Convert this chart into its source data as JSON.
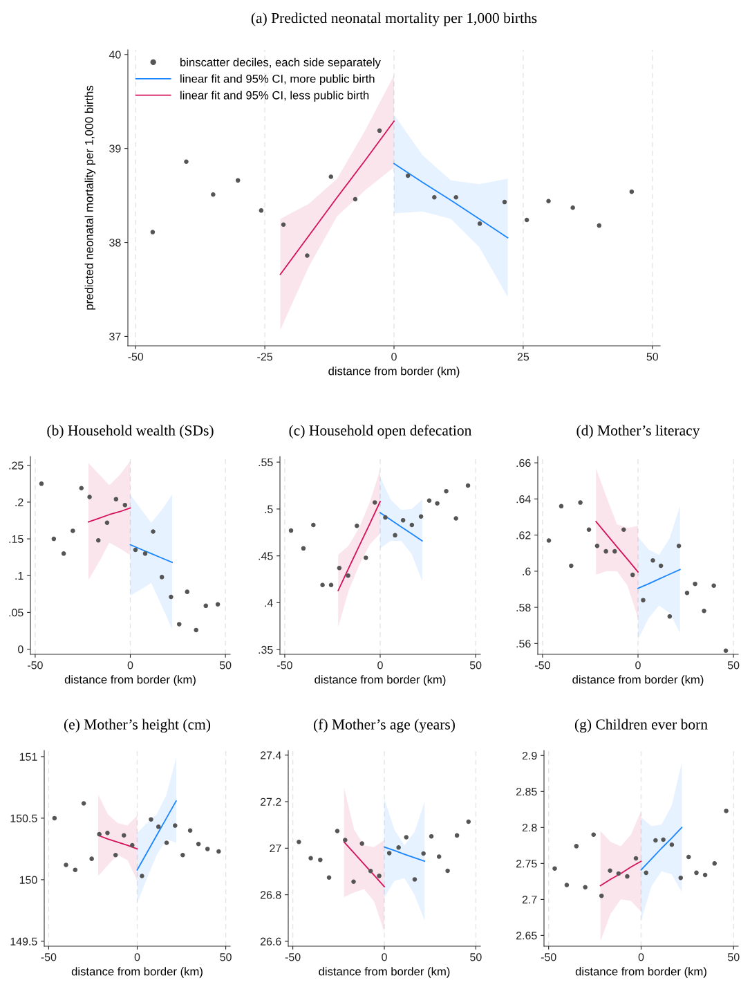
{
  "chart_data": [
    {
      "type": "scatter",
      "title": "(a) Predicted neonatal mortality per 1,000 births",
      "xlabel": "distance from border (km)",
      "ylabel": "predicted neonatal mortality per 1,000 births",
      "xlim": [
        -51.5,
        51.5
      ],
      "xticks": [
        -50,
        -25,
        0,
        25,
        50
      ],
      "ylim": [
        36.9,
        40.05
      ],
      "yticks": [
        37,
        38,
        39,
        40
      ],
      "grid": "x",
      "legend": "top left",
      "series": [
        {
          "type": "scatter",
          "name": "binscatter deciles, each side separately",
          "color": "#555555",
          "x": [
            -46.7,
            -40.2,
            -35.0,
            -30.2,
            -25.7,
            -21.4,
            -16.8,
            -12.2,
            -7.5,
            -2.8,
            2.7,
            7.8,
            12.0,
            16.6,
            21.4,
            25.7,
            29.9,
            34.6,
            39.7,
            46.0
          ],
          "values": [
            38.11,
            38.86,
            38.51,
            38.66,
            38.34,
            38.19,
            37.86,
            38.7,
            38.46,
            39.19,
            38.71,
            38.48,
            38.48,
            38.2,
            38.43,
            38.24,
            38.44,
            38.37,
            38.18,
            38.54
          ]
        },
        {
          "type": "line",
          "name": "linear fit and 95% CI, more public birth",
          "color": "#1a85ff",
          "x": [
            0,
            5.5,
            11,
            16.5,
            22
          ],
          "values": [
            38.84,
            38.64,
            38.45,
            38.25,
            38.05
          ],
          "lower": [
            38.31,
            38.33,
            38.25,
            37.95,
            37.42
          ],
          "upper": [
            39.36,
            38.93,
            38.66,
            38.62,
            38.68
          ]
        },
        {
          "type": "line",
          "name": "linear fit and 95% CI, less public birth",
          "color": "#d41159",
          "x": [
            -22,
            -16.5,
            -11,
            -5.5,
            0
          ],
          "values": [
            37.66,
            38.07,
            38.48,
            38.88,
            39.29
          ],
          "lower": [
            37.07,
            37.74,
            38.28,
            38.56,
            38.8
          ],
          "upper": [
            38.25,
            38.41,
            38.68,
            39.2,
            39.78
          ]
        }
      ]
    },
    {
      "type": "scatter",
      "title": "(b) Household wealth (SDs)",
      "xlabel": "distance from border (km)",
      "xlim": [
        -52.5,
        52.5
      ],
      "xticks": [
        -50,
        0,
        50
      ],
      "ylim": [
        -0.007,
        0.262
      ],
      "yticks": [
        0,
        {
          "value": 0.05,
          "label": ".05"
        },
        {
          "value": 0.1,
          "label": ".1"
        },
        {
          "value": 0.15,
          "label": ".15"
        },
        {
          "value": 0.2,
          "label": ".2"
        },
        {
          "value": 0.25,
          "label": ".25"
        }
      ],
      "grid": "x",
      "series": [
        {
          "type": "scatter",
          "color": "#555555",
          "x": [
            -46.7,
            -40.2,
            -35.0,
            -30.2,
            -25.7,
            -21.4,
            -16.8,
            -12.2,
            -7.5,
            -2.8,
            2.7,
            7.8,
            12.0,
            16.6,
            21.4,
            25.7,
            29.9,
            34.6,
            39.7,
            46.0
          ],
          "values": [
            0.225,
            0.15,
            0.13,
            0.161,
            0.219,
            0.207,
            0.148,
            0.172,
            0.204,
            0.196,
            0.135,
            0.13,
            0.16,
            0.098,
            0.071,
            0.034,
            0.078,
            0.026,
            0.059,
            0.061
          ]
        },
        {
          "type": "line",
          "color": "#1a85ff",
          "x": [
            0,
            5.5,
            11,
            16.5,
            22
          ],
          "values": [
            0.142,
            0.136,
            0.13,
            0.124,
            0.118
          ],
          "lower": [
            0.073,
            0.081,
            0.09,
            0.059,
            0.027
          ],
          "upper": [
            0.21,
            0.191,
            0.172,
            0.189,
            0.21
          ]
        },
        {
          "type": "line",
          "color": "#d41159",
          "x": [
            -22,
            -16.5,
            -11,
            -5.5,
            0
          ],
          "values": [
            0.173,
            0.178,
            0.183,
            0.187,
            0.192
          ],
          "lower": [
            0.094,
            0.118,
            0.145,
            0.137,
            0.128
          ],
          "upper": [
            0.253,
            0.238,
            0.223,
            0.237,
            0.256
          ]
        }
      ]
    },
    {
      "type": "scatter",
      "title": "(c) Household open defecation",
      "xlabel": "distance from border (km)",
      "xlim": [
        -52.5,
        52.5
      ],
      "xticks": [
        -50,
        0,
        50
      ],
      "ylim": [
        0.345,
        0.556
      ],
      "yticks": [
        {
          "value": 0.35,
          "label": ".35"
        },
        {
          "value": 0.4,
          "label": ".4"
        },
        {
          "value": 0.45,
          "label": ".45"
        },
        {
          "value": 0.5,
          "label": ".5"
        },
        {
          "value": 0.55,
          "label": ".55"
        }
      ],
      "grid": "x",
      "series": [
        {
          "type": "scatter",
          "color": "#555555",
          "x": [
            -46.7,
            -40.2,
            -35.0,
            -30.2,
            -25.7,
            -21.4,
            -16.8,
            -12.2,
            -7.5,
            -2.8,
            2.7,
            7.8,
            12.0,
            16.6,
            21.4,
            25.7,
            29.9,
            34.6,
            39.7,
            46.0
          ],
          "values": [
            0.477,
            0.458,
            0.483,
            0.419,
            0.419,
            0.437,
            0.429,
            0.482,
            0.448,
            0.507,
            0.491,
            0.472,
            0.488,
            0.483,
            0.492,
            0.509,
            0.506,
            0.519,
            0.49,
            0.525
          ]
        },
        {
          "type": "line",
          "color": "#1a85ff",
          "x": [
            0,
            5.5,
            11,
            16.5,
            22
          ],
          "values": [
            0.496,
            0.4885,
            0.481,
            0.4735,
            0.466
          ],
          "lower": [
            0.458,
            0.466,
            0.466,
            0.452,
            0.423
          ],
          "upper": [
            0.534,
            0.51,
            0.499,
            0.5,
            0.51
          ]
        },
        {
          "type": "line",
          "color": "#d41159",
          "x": [
            -22,
            -16.5,
            -11,
            -5.5,
            0
          ],
          "values": [
            0.413,
            0.437,
            0.4605,
            0.484,
            0.508
          ],
          "lower": [
            0.374,
            0.413,
            0.44,
            0.462,
            0.474
          ],
          "upper": [
            0.451,
            0.461,
            0.48,
            0.507,
            0.542
          ]
        }
      ]
    },
    {
      "type": "scatter",
      "title": "(d) Mother’s literacy",
      "xlabel": "distance from border (km)",
      "xlim": [
        -52.5,
        52.5
      ],
      "xticks": [
        -50,
        0,
        50
      ],
      "ylim": [
        0.554,
        0.6635
      ],
      "yticks": [
        {
          "value": 0.56,
          "label": ".56"
        },
        {
          "value": 0.58,
          "label": ".58"
        },
        {
          "value": 0.6,
          "label": ".6"
        },
        {
          "value": 0.62,
          "label": ".62"
        },
        {
          "value": 0.64,
          "label": ".64"
        },
        {
          "value": 0.66,
          "label": ".66"
        }
      ],
      "grid": "x",
      "series": [
        {
          "type": "scatter",
          "color": "#555555",
          "x": [
            -46.7,
            -40.2,
            -35.0,
            -30.2,
            -25.7,
            -21.4,
            -16.8,
            -12.2,
            -7.5,
            -2.8,
            2.7,
            7.8,
            12.0,
            16.6,
            21.4,
            25.7,
            29.9,
            34.6,
            39.7,
            46.0
          ],
          "values": [
            0.617,
            0.636,
            0.603,
            0.638,
            0.623,
            0.614,
            0.611,
            0.611,
            0.623,
            0.598,
            0.584,
            0.606,
            0.603,
            0.575,
            0.614,
            0.588,
            0.593,
            0.578,
            0.592,
            0.556
          ]
        },
        {
          "type": "line",
          "color": "#1a85ff",
          "x": [
            0,
            5.5,
            11,
            16.5,
            22
          ],
          "values": [
            0.5905,
            0.593,
            0.5957,
            0.5983,
            0.6009
          ],
          "lower": [
            0.562,
            0.574,
            0.581,
            0.577,
            0.566
          ],
          "upper": [
            0.619,
            0.612,
            0.609,
            0.618,
            0.636
          ]
        },
        {
          "type": "line",
          "color": "#d41159",
          "x": [
            -22,
            -16.5,
            -11,
            -5.5,
            0
          ],
          "values": [
            0.6275,
            0.6205,
            0.6135,
            0.6066,
            0.5996
          ],
          "lower": [
            0.598,
            0.6,
            0.6,
            0.592,
            0.574
          ],
          "upper": [
            0.657,
            0.641,
            0.626,
            0.624,
            0.625
          ]
        }
      ]
    },
    {
      "type": "scatter",
      "title": "(e) Mother’s height (cm)",
      "xlabel": "distance from border (km)",
      "xlim": [
        -52.5,
        52.5
      ],
      "xticks": [
        -50,
        0,
        50
      ],
      "ylim": [
        149.46,
        151.05
      ],
      "yticks": [
        149.5,
        150,
        150.5,
        151
      ],
      "grid": "x",
      "series": [
        {
          "type": "scatter",
          "color": "#555555",
          "x": [
            -46.7,
            -40.2,
            -35.0,
            -30.2,
            -25.7,
            -21.4,
            -16.8,
            -12.2,
            -7.5,
            -2.8,
            2.7,
            7.8,
            12.0,
            16.6,
            21.4,
            25.7,
            29.9,
            34.6,
            39.7,
            46.0
          ],
          "values": [
            150.5,
            150.12,
            150.08,
            150.62,
            150.17,
            150.37,
            150.38,
            150.2,
            150.36,
            150.28,
            150.03,
            150.49,
            150.43,
            150.3,
            150.44,
            150.2,
            150.4,
            150.29,
            150.25,
            150.23
          ]
        },
        {
          "type": "line",
          "color": "#1a85ff",
          "x": [
            0,
            5.5,
            11,
            16.5,
            22
          ],
          "values": [
            150.08,
            150.22,
            150.36,
            150.5,
            150.64
          ],
          "lower": [
            149.81,
            150.01,
            150.2,
            150.33,
            150.3
          ],
          "upper": [
            150.38,
            150.46,
            150.53,
            150.69,
            150.99
          ]
        },
        {
          "type": "line",
          "color": "#d41159",
          "x": [
            -22,
            -16.5,
            -11,
            -5.5,
            0
          ],
          "values": [
            150.36,
            150.33,
            150.305,
            150.28,
            150.25
          ],
          "lower": [
            150.03,
            150.12,
            150.2,
            150.16,
            149.99
          ],
          "upper": [
            150.69,
            150.53,
            150.46,
            150.44,
            150.52
          ]
        }
      ]
    },
    {
      "type": "scatter",
      "title": "(f) Mother’s age (years)",
      "xlabel": "distance from border (km)",
      "xlim": [
        -52.5,
        52.5
      ],
      "xticks": [
        -50,
        0,
        50
      ],
      "ylim": [
        26.579,
        27.42
      ],
      "yticks": [
        26.6,
        26.8,
        27,
        27.2,
        27.4
      ],
      "grid": "x",
      "series": [
        {
          "type": "scatter",
          "color": "#555555",
          "x": [
            -46.7,
            -40.2,
            -35.0,
            -30.2,
            -25.7,
            -21.4,
            -16.8,
            -12.2,
            -7.5,
            -2.8,
            2.7,
            7.8,
            12.0,
            16.6,
            21.4,
            25.7,
            29.9,
            34.6,
            39.7,
            46.0
          ],
          "values": [
            27.027,
            26.957,
            26.95,
            26.874,
            27.074,
            27.035,
            26.856,
            27.02,
            26.902,
            26.881,
            26.979,
            27.003,
            27.047,
            26.866,
            26.977,
            27.051,
            26.964,
            26.903,
            27.055,
            27.114
          ]
        },
        {
          "type": "line",
          "color": "#1a85ff",
          "x": [
            0,
            5.5,
            11,
            16.5,
            22
          ],
          "values": [
            27.005,
            26.99,
            26.974,
            26.959,
            26.944
          ],
          "lower": [
            26.788,
            26.86,
            26.871,
            26.8,
            26.689
          ],
          "upper": [
            27.213,
            27.08,
            27.012,
            27.07,
            27.199
          ]
        },
        {
          "type": "line",
          "color": "#d41159",
          "x": [
            -22,
            -16.5,
            -11,
            -5.5,
            0
          ],
          "values": [
            27.027,
            26.979,
            26.931,
            26.883,
            26.835
          ],
          "lower": [
            26.79,
            26.81,
            26.824,
            26.77,
            26.64
          ],
          "upper": [
            27.26,
            27.08,
            27.012,
            27.005,
            27.035
          ]
        }
      ]
    },
    {
      "type": "scatter",
      "title": "(g) Children ever born",
      "xlabel": "distance from border (km)",
      "xlim": [
        -52.5,
        52.5
      ],
      "xticks": [
        -50,
        0,
        50
      ],
      "ylim": [
        2.635,
        2.907
      ],
      "yticks": [
        2.65,
        2.7,
        2.75,
        2.8,
        2.85,
        2.9
      ],
      "grid": "x",
      "series": [
        {
          "type": "scatter",
          "color": "#555555",
          "x": [
            -46.7,
            -40.2,
            -35.0,
            -30.2,
            -25.7,
            -21.4,
            -16.8,
            -12.2,
            -7.5,
            -2.8,
            2.7,
            7.8,
            12.0,
            16.6,
            21.4,
            25.7,
            29.9,
            34.6,
            39.7,
            46.0
          ],
          "values": [
            2.743,
            2.72,
            2.774,
            2.717,
            2.79,
            2.705,
            2.74,
            2.736,
            2.732,
            2.757,
            2.737,
            2.782,
            2.783,
            2.776,
            2.73,
            2.759,
            2.737,
            2.734,
            2.75,
            2.823
          ]
        },
        {
          "type": "line",
          "color": "#1a85ff",
          "x": [
            0,
            5.5,
            11,
            16.5,
            22
          ],
          "values": [
            2.741,
            2.756,
            2.771,
            2.785,
            2.8
          ],
          "lower": [
            2.67,
            2.718,
            2.739,
            2.735,
            2.71
          ],
          "upper": [
            2.814,
            2.802,
            2.804,
            2.83,
            2.89
          ]
        },
        {
          "type": "line",
          "color": "#d41159",
          "x": [
            -22,
            -16.5,
            -11,
            -5.5,
            0
          ],
          "values": [
            2.719,
            2.728,
            2.736,
            2.745,
            2.753
          ],
          "lower": [
            2.642,
            2.68,
            2.7,
            2.698,
            2.683
          ],
          "upper": [
            2.795,
            2.78,
            2.774,
            2.79,
            2.823
          ]
        }
      ]
    }
  ]
}
